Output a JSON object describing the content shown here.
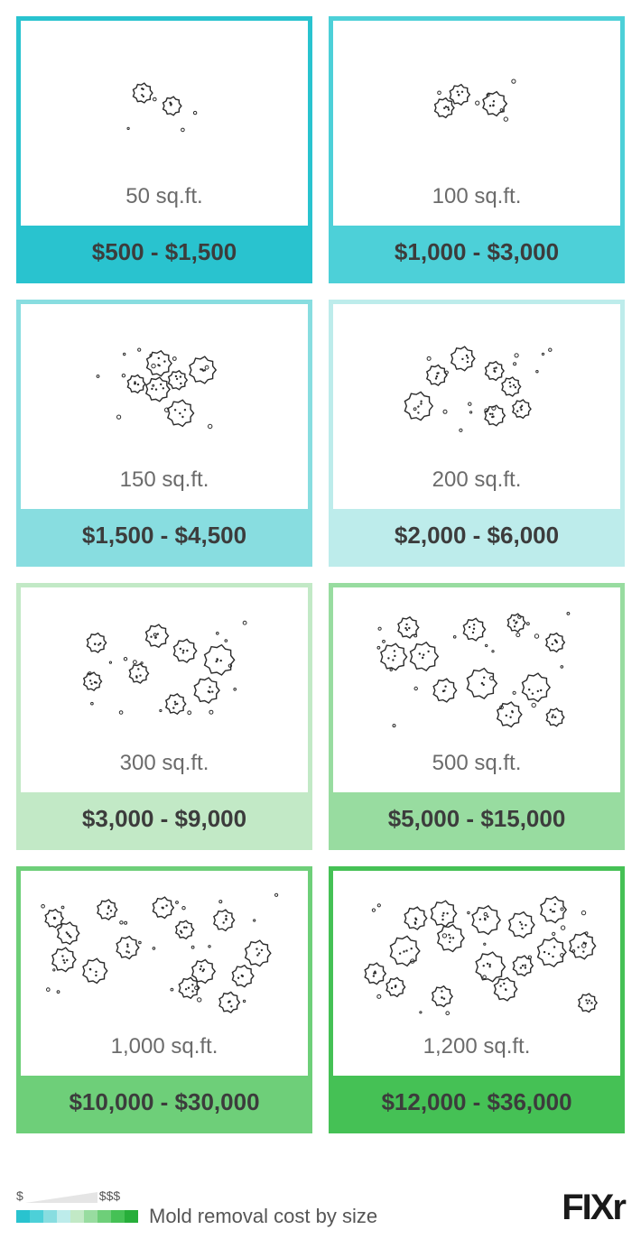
{
  "caption": "Mold removal cost by size",
  "legend_low": "$",
  "legend_high": "$$$",
  "logo": "FIXr",
  "scale_colors": [
    "#29c3cf",
    "#4dd0d8",
    "#88dde0",
    "#bdeceb",
    "#c2e9c6",
    "#98dca0",
    "#6ecf79",
    "#45c155",
    "#27ae3a"
  ],
  "cards": [
    {
      "size": "50 sq.ft.",
      "price": "$500 - $1,500",
      "border": "#29c3cf",
      "bar": "#29c3cf",
      "spores": 2
    },
    {
      "size": "100 sq.ft.",
      "price": "$1,000 - $3,000",
      "border": "#4dd0d8",
      "bar": "#4dd0d8",
      "spores": 3
    },
    {
      "size": "150 sq.ft.",
      "price": "$1,500 - $4,500",
      "border": "#88dde0",
      "bar": "#88dde0",
      "spores": 6
    },
    {
      "size": "200 sq.ft.",
      "price": "$2,000 - $6,000",
      "border": "#bdeceb",
      "bar": "#bdeceb",
      "spores": 7
    },
    {
      "size": "300 sq.ft.",
      "price": "$3,000 - $9,000",
      "border": "#c2e9c6",
      "bar": "#c2e9c6",
      "spores": 8
    },
    {
      "size": "500 sq.ft.",
      "price": "$5,000 - $15,000",
      "border": "#98dca0",
      "bar": "#98dca0",
      "spores": 11
    },
    {
      "size": "1,000 sq.ft.",
      "price": "$10,000 - $30,000",
      "border": "#6ecf79",
      "bar": "#6ecf79",
      "spores": 14
    },
    {
      "size": "1,200 sq.ft.",
      "price": "$12,000 - $36,000",
      "border": "#45c155",
      "bar": "#45c155",
      "spores": 16
    }
  ],
  "icon_stroke": "#2a2a2a",
  "text_muted": "#6b6b6b",
  "text_dark": "#3c3c3c",
  "background": "#ffffff"
}
